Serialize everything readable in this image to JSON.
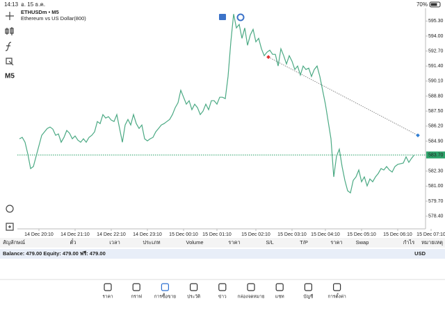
{
  "status_bar": {
    "time": "14:13",
    "date": "อ. 15 ธ.ค.",
    "battery": "70%"
  },
  "toolbar": {
    "timeframe": "M5"
  },
  "chart_data": {
    "type": "line",
    "title": "ETHUSDm • M5",
    "subtitle": "Ethereum vs US Dollar(800)",
    "color": "#4aa983",
    "values": [
      585.1,
      585.22,
      584.8,
      583.78,
      582.52,
      582.7,
      583.6,
      584.5,
      585.4,
      585.7,
      586.0,
      586.12,
      585.94,
      585.4,
      585.52,
      584.8,
      585.22,
      585.82,
      585.58,
      585.1,
      585.34,
      584.98,
      584.8,
      585.1,
      584.8,
      585.22,
      585.4,
      585.7,
      586.6,
      586.42,
      587.2,
      586.9,
      587.02,
      586.72,
      586.6,
      587.2,
      586.0,
      584.8,
      586.3,
      586.78,
      586.3,
      587.2,
      586.42,
      586.0,
      586.3,
      585.1,
      584.92,
      585.1,
      585.22,
      585.7,
      586.0,
      586.3,
      586.42,
      586.6,
      586.78,
      587.2,
      587.8,
      588.22,
      589.3,
      588.7,
      588.1,
      588.4,
      587.62,
      588.1,
      587.8,
      587.2,
      587.5,
      588.1,
      587.62,
      588.4,
      588.4,
      588.1,
      588.7,
      588.7,
      588.58,
      590.5,
      593.5,
      595.9,
      594.7,
      595.0,
      593.8,
      594.7,
      593.2,
      594.1,
      594.58,
      593.5,
      593.8,
      592.9,
      592.3,
      592.6,
      592.78,
      592.42,
      592.42,
      591.4,
      592.9,
      592.3,
      591.58,
      592.3,
      591.82,
      591.1,
      591.4,
      590.62,
      591.4,
      591.1,
      591.22,
      590.5,
      591.1,
      591.4,
      590.5,
      589.3,
      588.1,
      586.6,
      585.1,
      581.8,
      583.6,
      584.2,
      582.7,
      581.5,
      580.6,
      580.42,
      581.5,
      581.8,
      582.4,
      581.38,
      581.8,
      581.02,
      581.62,
      581.38,
      581.8,
      582.1,
      582.52,
      582.4,
      582.7,
      582.4,
      582.22,
      582.7,
      582.88,
      582.94,
      583.0,
      583.54,
      583.06,
      583.42,
      583.72
    ],
    "xlim": [
      0,
      146
    ],
    "xticks": [
      {
        "value": 7,
        "label": "14 Dec 20:10"
      },
      {
        "value": 20,
        "label": "14 Dec 21:10"
      },
      {
        "value": 33,
        "label": "14 Dec 22:10"
      },
      {
        "value": 46,
        "label": "14 Dec 23:10"
      },
      {
        "value": 59,
        "label": "15 Dec 00:10"
      },
      {
        "value": 71,
        "label": "15 Dec 01:10"
      },
      {
        "value": 85,
        "label": "15 Dec 02:10"
      },
      {
        "value": 98,
        "label": "15 Dec 03:10"
      },
      {
        "value": 110,
        "label": "15 Dec 04:10"
      },
      {
        "value": 123,
        "label": "15 Dec 05:10"
      },
      {
        "value": 136,
        "label": "15 Dec 06:10"
      },
      {
        "value": 148,
        "label": "15 Dec 07:10"
      }
    ],
    "ylim": [
      577.3,
      596.4
    ],
    "yticks": [
      {
        "value": 595.3,
        "label": "595.30"
      },
      {
        "value": 594,
        "label": "594.00"
      },
      {
        "value": 592.7,
        "label": "592.70"
      },
      {
        "value": 591.4,
        "label": "591.40"
      },
      {
        "value": 590.1,
        "label": "590.10"
      },
      {
        "value": 588.8,
        "label": "588.80"
      },
      {
        "value": 587.5,
        "label": "587.50"
      },
      {
        "value": 586.2,
        "label": "586.20"
      },
      {
        "value": 584.9,
        "label": "584.90"
      },
      {
        "value": 582.3,
        "label": "582.30"
      },
      {
        "value": 581,
        "label": "581.00"
      },
      {
        "value": 579.7,
        "label": "579.70"
      },
      {
        "value": 578.4,
        "label": "578.40"
      }
    ],
    "current_price": {
      "value": 583.7,
      "label": "583.70",
      "color": "#2ea36b"
    },
    "trendline": {
      "x": [
        89.5,
        143.25
      ],
      "y": [
        592.18,
        585.4
      ],
      "colors": [
        "#e0312f",
        "#2f7fd6"
      ]
    },
    "grid": false
  },
  "table": {
    "headers": [
      "สัญลักษณ์",
      "ตั๋ว",
      "เวลา",
      "ประเภท",
      "Volume",
      "ราคา",
      "S/L",
      "T/P",
      "ราคา",
      "Swap",
      "กำไร",
      "หมายเหตุ"
    ]
  },
  "balance": {
    "text": "Balance: 479.00 Equity: 479.00 ฟรี: 479.00",
    "currency": "USD"
  },
  "tabs": {
    "labels": [
      "ราคา",
      "กราฟ",
      "การซื้อขาย",
      "ประวัติ",
      "ข่าว",
      "กล่องจดหมาย",
      "แชท",
      "บัญชี",
      "การตั้งค่า"
    ],
    "active": 2
  }
}
